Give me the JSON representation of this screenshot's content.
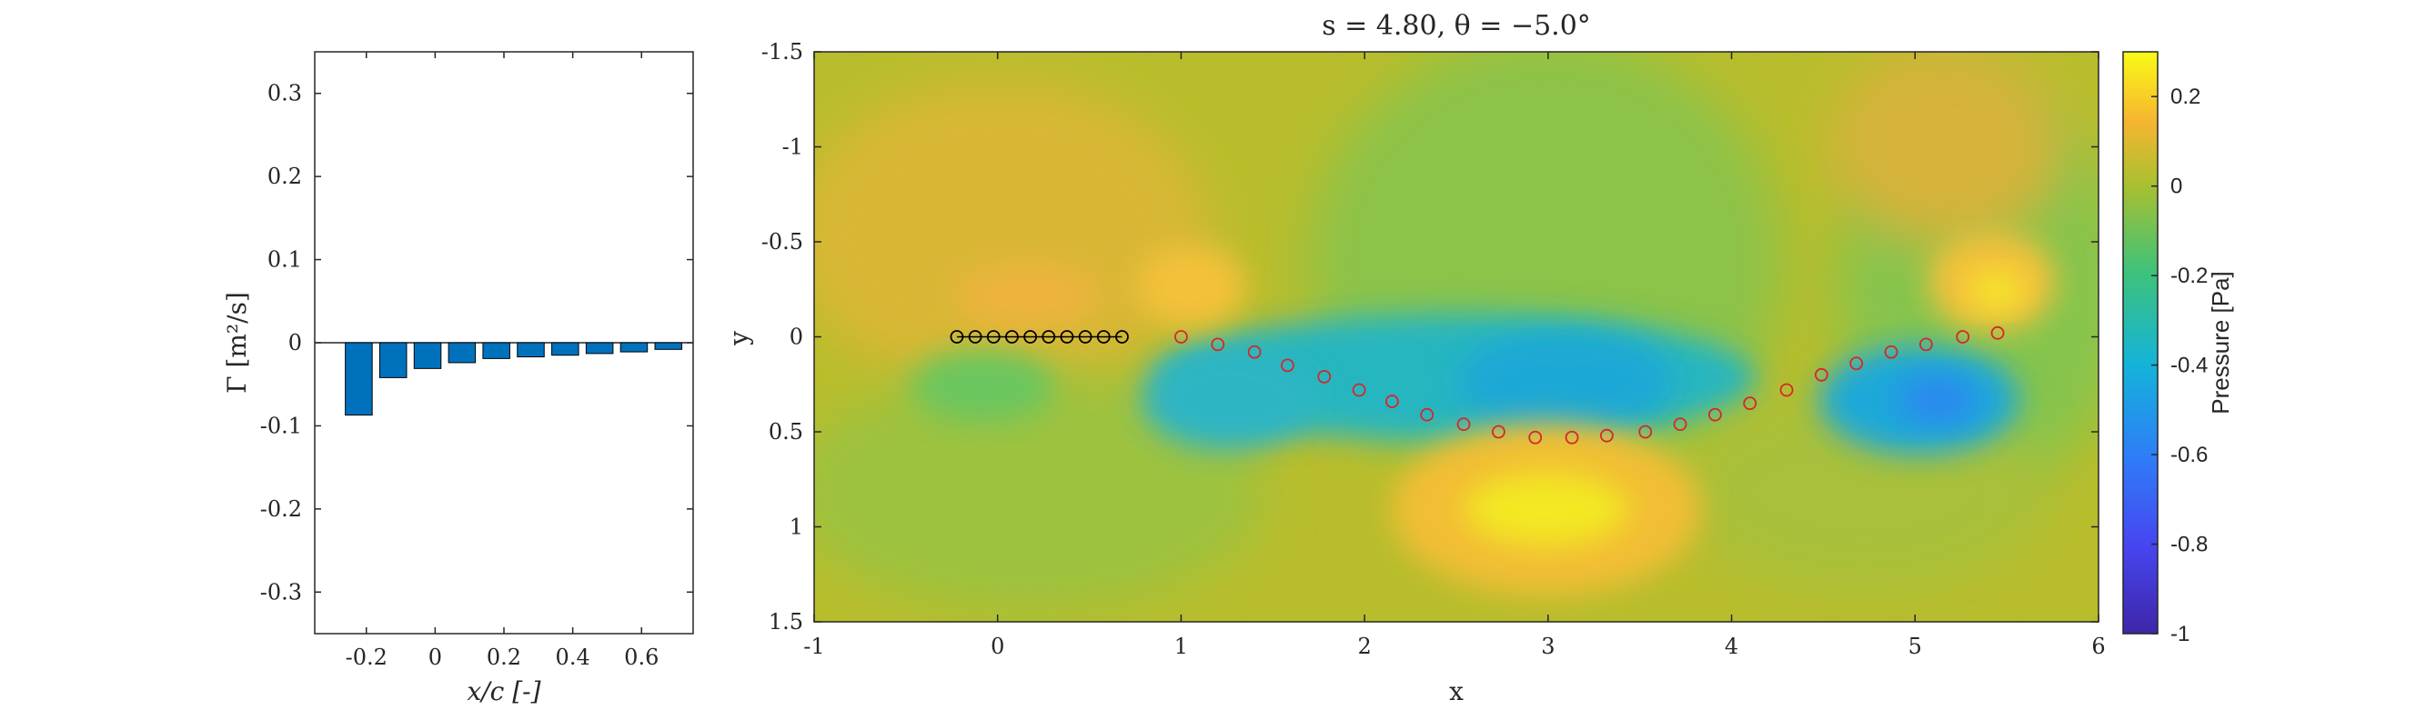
{
  "chart_data": [
    {
      "type": "bar",
      "title": "",
      "xlabel": "x/c [-]",
      "ylabel": "Γ [m²/s]",
      "xlim": [
        -0.35,
        0.75
      ],
      "ylim": [
        -0.35,
        0.35
      ],
      "xticks": [
        "-0.2",
        "0",
        "0.2",
        "0.4",
        "0.6"
      ],
      "xtick_values": [
        -0.2,
        0,
        0.2,
        0.4,
        0.6
      ],
      "yticks": [
        "-0.3",
        "-0.2",
        "-0.1",
        "0",
        "0.1",
        "0.2",
        "0.3"
      ],
      "ytick_values": [
        -0.3,
        -0.2,
        -0.1,
        0,
        0.1,
        0.2,
        0.3
      ],
      "bar_color": "#0072BD",
      "x": [
        -0.222,
        -0.122,
        -0.022,
        0.078,
        0.178,
        0.278,
        0.378,
        0.478,
        0.578,
        0.678
      ],
      "values": [
        -0.087,
        -0.042,
        -0.031,
        -0.024,
        -0.019,
        -0.017,
        -0.015,
        -0.013,
        -0.011,
        -0.008
      ]
    },
    {
      "type": "contour",
      "title": "s = 4.80, θ = −5.0°",
      "xlabel": "x",
      "ylabel": "y",
      "xlim": [
        -1,
        6
      ],
      "ylim": [
        -1.5,
        1.5
      ],
      "y_reversed": true,
      "xticks": [
        "-1",
        "0",
        "1",
        "2",
        "3",
        "4",
        "5",
        "6"
      ],
      "xtick_values": [
        -1,
        0,
        1,
        2,
        3,
        4,
        5,
        6
      ],
      "yticks": [
        "-1.5",
        "-1",
        "-0.5",
        "0",
        "0.5",
        "1",
        "1.5"
      ],
      "ytick_values": [
        -1.5,
        -1,
        -0.5,
        0,
        0.5,
        1,
        1.5
      ],
      "colorbar": {
        "label": "Pressure [Pa]",
        "range": [
          -1,
          0.3
        ],
        "ticks": [
          "-1",
          "-0.8",
          "-0.6",
          "-0.4",
          "-0.2",
          "0",
          "0.2"
        ],
        "tick_values": [
          -1,
          -0.8,
          -0.6,
          -0.4,
          -0.2,
          0,
          0.2
        ]
      },
      "plate_markers": {
        "color": "#000000",
        "x": [
          -0.222,
          -0.122,
          -0.022,
          0.078,
          0.178,
          0.278,
          0.378,
          0.478,
          0.578,
          0.678
        ],
        "y": [
          0,
          0,
          0,
          0,
          0,
          0,
          0,
          0,
          0,
          0
        ]
      },
      "wake_markers": {
        "color": "#D62728",
        "x": [
          1.0,
          1.2,
          1.4,
          1.58,
          1.78,
          1.97,
          2.15,
          2.34,
          2.54,
          2.73,
          2.93,
          3.13,
          3.32,
          3.53,
          3.72,
          3.91,
          4.1,
          4.3,
          4.49,
          4.68,
          4.87,
          5.06,
          5.26,
          5.45
        ],
        "y": [
          0.0,
          0.04,
          0.08,
          0.15,
          0.21,
          0.28,
          0.34,
          0.41,
          0.46,
          0.5,
          0.53,
          0.53,
          0.52,
          0.5,
          0.46,
          0.41,
          0.35,
          0.28,
          0.2,
          0.14,
          0.08,
          0.04,
          0.0,
          -0.02
        ]
      }
    }
  ]
}
